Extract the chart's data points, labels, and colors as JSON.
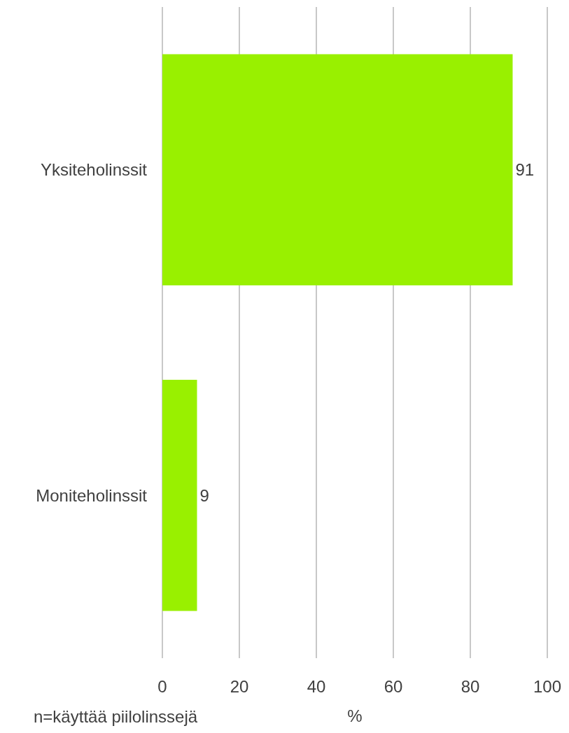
{
  "chart_data": {
    "type": "bar",
    "orientation": "horizontal",
    "categories": [
      "Yksiteholinssit",
      "Moniteholinssit"
    ],
    "values": [
      91,
      9
    ],
    "color": "#99f000",
    "xlim": [
      0,
      100
    ],
    "xticks": [
      0,
      20,
      40,
      60,
      80,
      100
    ],
    "grid": "x",
    "data_labels": true,
    "xlabel": "%",
    "annotations": [
      "n=käyttää piilolinssejä"
    ]
  }
}
